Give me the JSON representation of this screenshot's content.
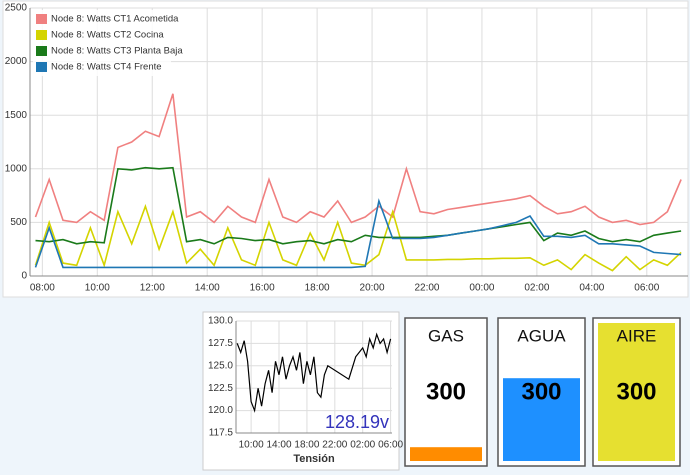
{
  "chart_data": [
    {
      "type": "line",
      "x": [
        7.75,
        8.25,
        8.75,
        9.25,
        9.75,
        10.25,
        10.75,
        11.25,
        11.75,
        12.25,
        12.75,
        13.25,
        13.75,
        14.25,
        14.75,
        15.25,
        15.75,
        16.25,
        16.75,
        17.25,
        17.75,
        18.25,
        18.75,
        19.25,
        19.75,
        20.25,
        20.75,
        21.25,
        21.75,
        22.25,
        22.75,
        23.25,
        23.75,
        24.25,
        24.75,
        25.25,
        25.75,
        26.25,
        26.75,
        27.25,
        27.75,
        28.25,
        28.75,
        29.25,
        29.75,
        30.25,
        30.75,
        31.25
      ],
      "series": [
        {
          "name": "Node 8: Watts CT1 Acometida",
          "color": "#f08080",
          "values": [
            550,
            900,
            520,
            500,
            600,
            520,
            1200,
            1250,
            1350,
            1300,
            1700,
            550,
            600,
            500,
            650,
            550,
            500,
            900,
            550,
            500,
            600,
            550,
            700,
            500,
            550,
            650,
            550,
            1000,
            600,
            580,
            620,
            640,
            660,
            680,
            700,
            720,
            750,
            650,
            580,
            600,
            650,
            550,
            500,
            520,
            480,
            500,
            600,
            900
          ]
        },
        {
          "name": "Node 8: Watts CT2 Cocina",
          "color": "#d4d400",
          "values": [
            100,
            500,
            120,
            100,
            450,
            100,
            600,
            300,
            650,
            250,
            600,
            120,
            250,
            100,
            450,
            150,
            100,
            500,
            150,
            100,
            400,
            150,
            500,
            120,
            100,
            200,
            600,
            150,
            150,
            150,
            155,
            155,
            160,
            160,
            165,
            165,
            170,
            100,
            150,
            60,
            200,
            120,
            50,
            180,
            60,
            150,
            100,
            220
          ]
        },
        {
          "name": "Node 8: Watts CT3 Planta Baja",
          "color": "#1a7a1a",
          "values": [
            330,
            320,
            340,
            300,
            320,
            310,
            1000,
            990,
            1010,
            1000,
            1010,
            320,
            340,
            300,
            360,
            350,
            330,
            340,
            300,
            320,
            330,
            300,
            340,
            320,
            380,
            360,
            360,
            360,
            360,
            370,
            380,
            400,
            420,
            440,
            460,
            480,
            500,
            330,
            400,
            380,
            420,
            350,
            320,
            340,
            320,
            380,
            400,
            420
          ]
        },
        {
          "name": "Node 8: Watts CT4 Frente",
          "color": "#1f77b4",
          "values": [
            80,
            450,
            80,
            80,
            80,
            80,
            80,
            80,
            80,
            80,
            80,
            80,
            80,
            80,
            80,
            80,
            80,
            80,
            80,
            80,
            80,
            80,
            80,
            80,
            90,
            700,
            350,
            350,
            350,
            360,
            380,
            400,
            420,
            440,
            470,
            500,
            560,
            370,
            370,
            360,
            380,
            300,
            300,
            290,
            280,
            220,
            210,
            200
          ]
        }
      ],
      "xlim": [
        7.55,
        31.5
      ],
      "ylim": [
        0,
        2500
      ],
      "xticks": [
        {
          "value": 8,
          "label": "08:00"
        },
        {
          "value": 10,
          "label": "10:00"
        },
        {
          "value": 12,
          "label": "12:00"
        },
        {
          "value": 14,
          "label": "14:00"
        },
        {
          "value": 16,
          "label": "16:00"
        },
        {
          "value": 18,
          "label": "18:00"
        },
        {
          "value": 20,
          "label": "20:00"
        },
        {
          "value": 22,
          "label": "22:00"
        },
        {
          "value": 24,
          "label": "00:00"
        },
        {
          "value": 26,
          "label": "02:00"
        },
        {
          "value": 28,
          "label": "04:00"
        },
        {
          "value": 30,
          "label": "06:00"
        }
      ],
      "yticks": [
        0,
        500,
        1000,
        1500,
        2000,
        2500
      ],
      "grid": true,
      "legend": "top-left"
    },
    {
      "type": "line",
      "xlabel": "Tensión",
      "readout": "128.19v",
      "x": [
        8,
        8.5,
        9,
        9.5,
        10,
        10.5,
        11,
        11.5,
        12,
        12.5,
        13,
        13.5,
        14,
        14.5,
        15,
        15.5,
        16,
        16.5,
        17,
        17.5,
        18,
        18.5,
        19,
        19.5,
        20,
        20.5,
        21,
        24,
        25,
        26,
        26.5,
        27,
        27.5,
        28,
        28.5,
        29,
        29.5,
        30
      ],
      "series": [
        {
          "name": "Tensión",
          "color": "#000000",
          "values": [
            127.5,
            126.5,
            127.8,
            125.5,
            121,
            120,
            122.5,
            120.5,
            123,
            124.5,
            122,
            125.5,
            124,
            126,
            123.5,
            125,
            126,
            124.5,
            126.5,
            123,
            125.5,
            124,
            126,
            122,
            121.5,
            124,
            125,
            123.5,
            126,
            127,
            126,
            128,
            127,
            128.5,
            127.5,
            128,
            126.5,
            128
          ]
        }
      ],
      "xlim": [
        7.83,
        30.2
      ],
      "ylim": [
        117.5,
        130
      ],
      "xticks": [
        {
          "value": 10,
          "label": "10:00"
        },
        {
          "value": 14,
          "label": "14:00"
        },
        {
          "value": 18,
          "label": "18:00"
        },
        {
          "value": 22,
          "label": "22:00"
        },
        {
          "value": 26,
          "label": "02:00"
        },
        {
          "value": 30,
          "label": "06:00"
        }
      ],
      "yticks": [
        117.5,
        {
          "value": 120,
          "label": "120.0"
        },
        122.5,
        {
          "value": 125,
          "label": "125.0"
        },
        127.5,
        {
          "value": 130,
          "label": "130.0"
        }
      ],
      "grid": true
    }
  ],
  "gauges": [
    {
      "label": "GAS",
      "value": "300",
      "level": 10,
      "ylim": [
        0,
        100
      ],
      "color": "#ff8c00"
    },
    {
      "label": "AGUA",
      "value": "300",
      "level": 60,
      "ylim": [
        0,
        100
      ],
      "color": "#1e90ff"
    },
    {
      "label": "AIRE",
      "value": "300",
      "level": 100,
      "ylim": [
        0,
        100
      ],
      "color": "#e6e030"
    }
  ]
}
